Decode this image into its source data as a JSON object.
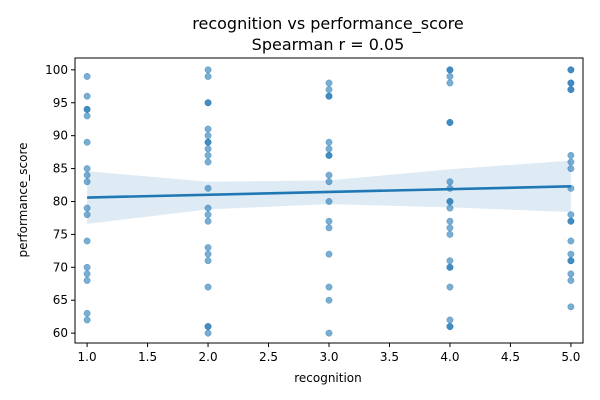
{
  "chart_data": {
    "type": "scatter",
    "title": "recognition vs performance_score",
    "subtitle": "Spearman r = 0.05",
    "xlabel": "recognition",
    "ylabel": "performance_score",
    "xlim": [
      0.9,
      5.1
    ],
    "ylim": [
      58.5,
      101.8
    ],
    "x_ticks": [
      1.0,
      1.5,
      2.0,
      2.5,
      3.0,
      3.5,
      4.0,
      4.5,
      5.0
    ],
    "x_tick_labels": [
      "1.0",
      "1.5",
      "2.0",
      "2.5",
      "3.0",
      "3.5",
      "4.0",
      "4.5",
      "5.0"
    ],
    "y_ticks": [
      60,
      65,
      70,
      75,
      80,
      85,
      90,
      95,
      100
    ],
    "y_tick_labels": [
      "60",
      "65",
      "70",
      "75",
      "80",
      "85",
      "90",
      "95",
      "100"
    ],
    "grid": false,
    "colors": {
      "points": "#1f77b4",
      "line": "#1f77b4",
      "band": "#1f77b4",
      "axis": "#000000"
    },
    "points": [
      {
        "x": 1,
        "y": 99
      },
      {
        "x": 1,
        "y": 96
      },
      {
        "x": 1,
        "y": 94
      },
      {
        "x": 1,
        "y": 94
      },
      {
        "x": 1,
        "y": 93
      },
      {
        "x": 1,
        "y": 89
      },
      {
        "x": 1,
        "y": 85
      },
      {
        "x": 1,
        "y": 84
      },
      {
        "x": 1,
        "y": 83
      },
      {
        "x": 1,
        "y": 79
      },
      {
        "x": 1,
        "y": 78
      },
      {
        "x": 1,
        "y": 74
      },
      {
        "x": 1,
        "y": 70
      },
      {
        "x": 1,
        "y": 69
      },
      {
        "x": 1,
        "y": 68
      },
      {
        "x": 1,
        "y": 63
      },
      {
        "x": 1,
        "y": 62
      },
      {
        "x": 2,
        "y": 100
      },
      {
        "x": 2,
        "y": 99
      },
      {
        "x": 2,
        "y": 95
      },
      {
        "x": 2,
        "y": 95
      },
      {
        "x": 2,
        "y": 91
      },
      {
        "x": 2,
        "y": 90
      },
      {
        "x": 2,
        "y": 89
      },
      {
        "x": 2,
        "y": 89
      },
      {
        "x": 2,
        "y": 88
      },
      {
        "x": 2,
        "y": 87
      },
      {
        "x": 2,
        "y": 86
      },
      {
        "x": 2,
        "y": 82
      },
      {
        "x": 2,
        "y": 79
      },
      {
        "x": 2,
        "y": 78
      },
      {
        "x": 2,
        "y": 77
      },
      {
        "x": 2,
        "y": 73
      },
      {
        "x": 2,
        "y": 72
      },
      {
        "x": 2,
        "y": 71
      },
      {
        "x": 2,
        "y": 67
      },
      {
        "x": 2,
        "y": 61
      },
      {
        "x": 2,
        "y": 61
      },
      {
        "x": 2,
        "y": 60
      },
      {
        "x": 3,
        "y": 98
      },
      {
        "x": 3,
        "y": 97
      },
      {
        "x": 3,
        "y": 96
      },
      {
        "x": 3,
        "y": 96
      },
      {
        "x": 3,
        "y": 89
      },
      {
        "x": 3,
        "y": 88
      },
      {
        "x": 3,
        "y": 87
      },
      {
        "x": 3,
        "y": 87
      },
      {
        "x": 3,
        "y": 84
      },
      {
        "x": 3,
        "y": 83
      },
      {
        "x": 3,
        "y": 80
      },
      {
        "x": 3,
        "y": 77
      },
      {
        "x": 3,
        "y": 76
      },
      {
        "x": 3,
        "y": 72
      },
      {
        "x": 3,
        "y": 67
      },
      {
        "x": 3,
        "y": 65
      },
      {
        "x": 3,
        "y": 60
      },
      {
        "x": 4,
        "y": 100
      },
      {
        "x": 4,
        "y": 100
      },
      {
        "x": 4,
        "y": 99
      },
      {
        "x": 4,
        "y": 98
      },
      {
        "x": 4,
        "y": 92
      },
      {
        "x": 4,
        "y": 92
      },
      {
        "x": 4,
        "y": 83
      },
      {
        "x": 4,
        "y": 82
      },
      {
        "x": 4,
        "y": 80
      },
      {
        "x": 4,
        "y": 80
      },
      {
        "x": 4,
        "y": 79
      },
      {
        "x": 4,
        "y": 77
      },
      {
        "x": 4,
        "y": 76
      },
      {
        "x": 4,
        "y": 75
      },
      {
        "x": 4,
        "y": 71
      },
      {
        "x": 4,
        "y": 70
      },
      {
        "x": 4,
        "y": 70
      },
      {
        "x": 4,
        "y": 67
      },
      {
        "x": 4,
        "y": 62
      },
      {
        "x": 4,
        "y": 61
      },
      {
        "x": 4,
        "y": 61
      },
      {
        "x": 5,
        "y": 100
      },
      {
        "x": 5,
        "y": 100
      },
      {
        "x": 5,
        "y": 98
      },
      {
        "x": 5,
        "y": 98
      },
      {
        "x": 5,
        "y": 97
      },
      {
        "x": 5,
        "y": 97
      },
      {
        "x": 5,
        "y": 87
      },
      {
        "x": 5,
        "y": 86
      },
      {
        "x": 5,
        "y": 85
      },
      {
        "x": 5,
        "y": 82
      },
      {
        "x": 5,
        "y": 78
      },
      {
        "x": 5,
        "y": 77
      },
      {
        "x": 5,
        "y": 77
      },
      {
        "x": 5,
        "y": 74
      },
      {
        "x": 5,
        "y": 72
      },
      {
        "x": 5,
        "y": 71
      },
      {
        "x": 5,
        "y": 71
      },
      {
        "x": 5,
        "y": 69
      },
      {
        "x": 5,
        "y": 68
      },
      {
        "x": 5,
        "y": 64
      }
    ],
    "regression_line": {
      "x": [
        1,
        5
      ],
      "y": [
        80.6,
        82.3
      ]
    },
    "confidence_band": {
      "x": [
        1,
        2,
        3,
        4,
        5
      ],
      "lower": [
        76.6,
        78.8,
        79.6,
        79.1,
        78.4
      ],
      "upper": [
        84.6,
        83.0,
        83.2,
        84.9,
        86.2
      ]
    }
  }
}
